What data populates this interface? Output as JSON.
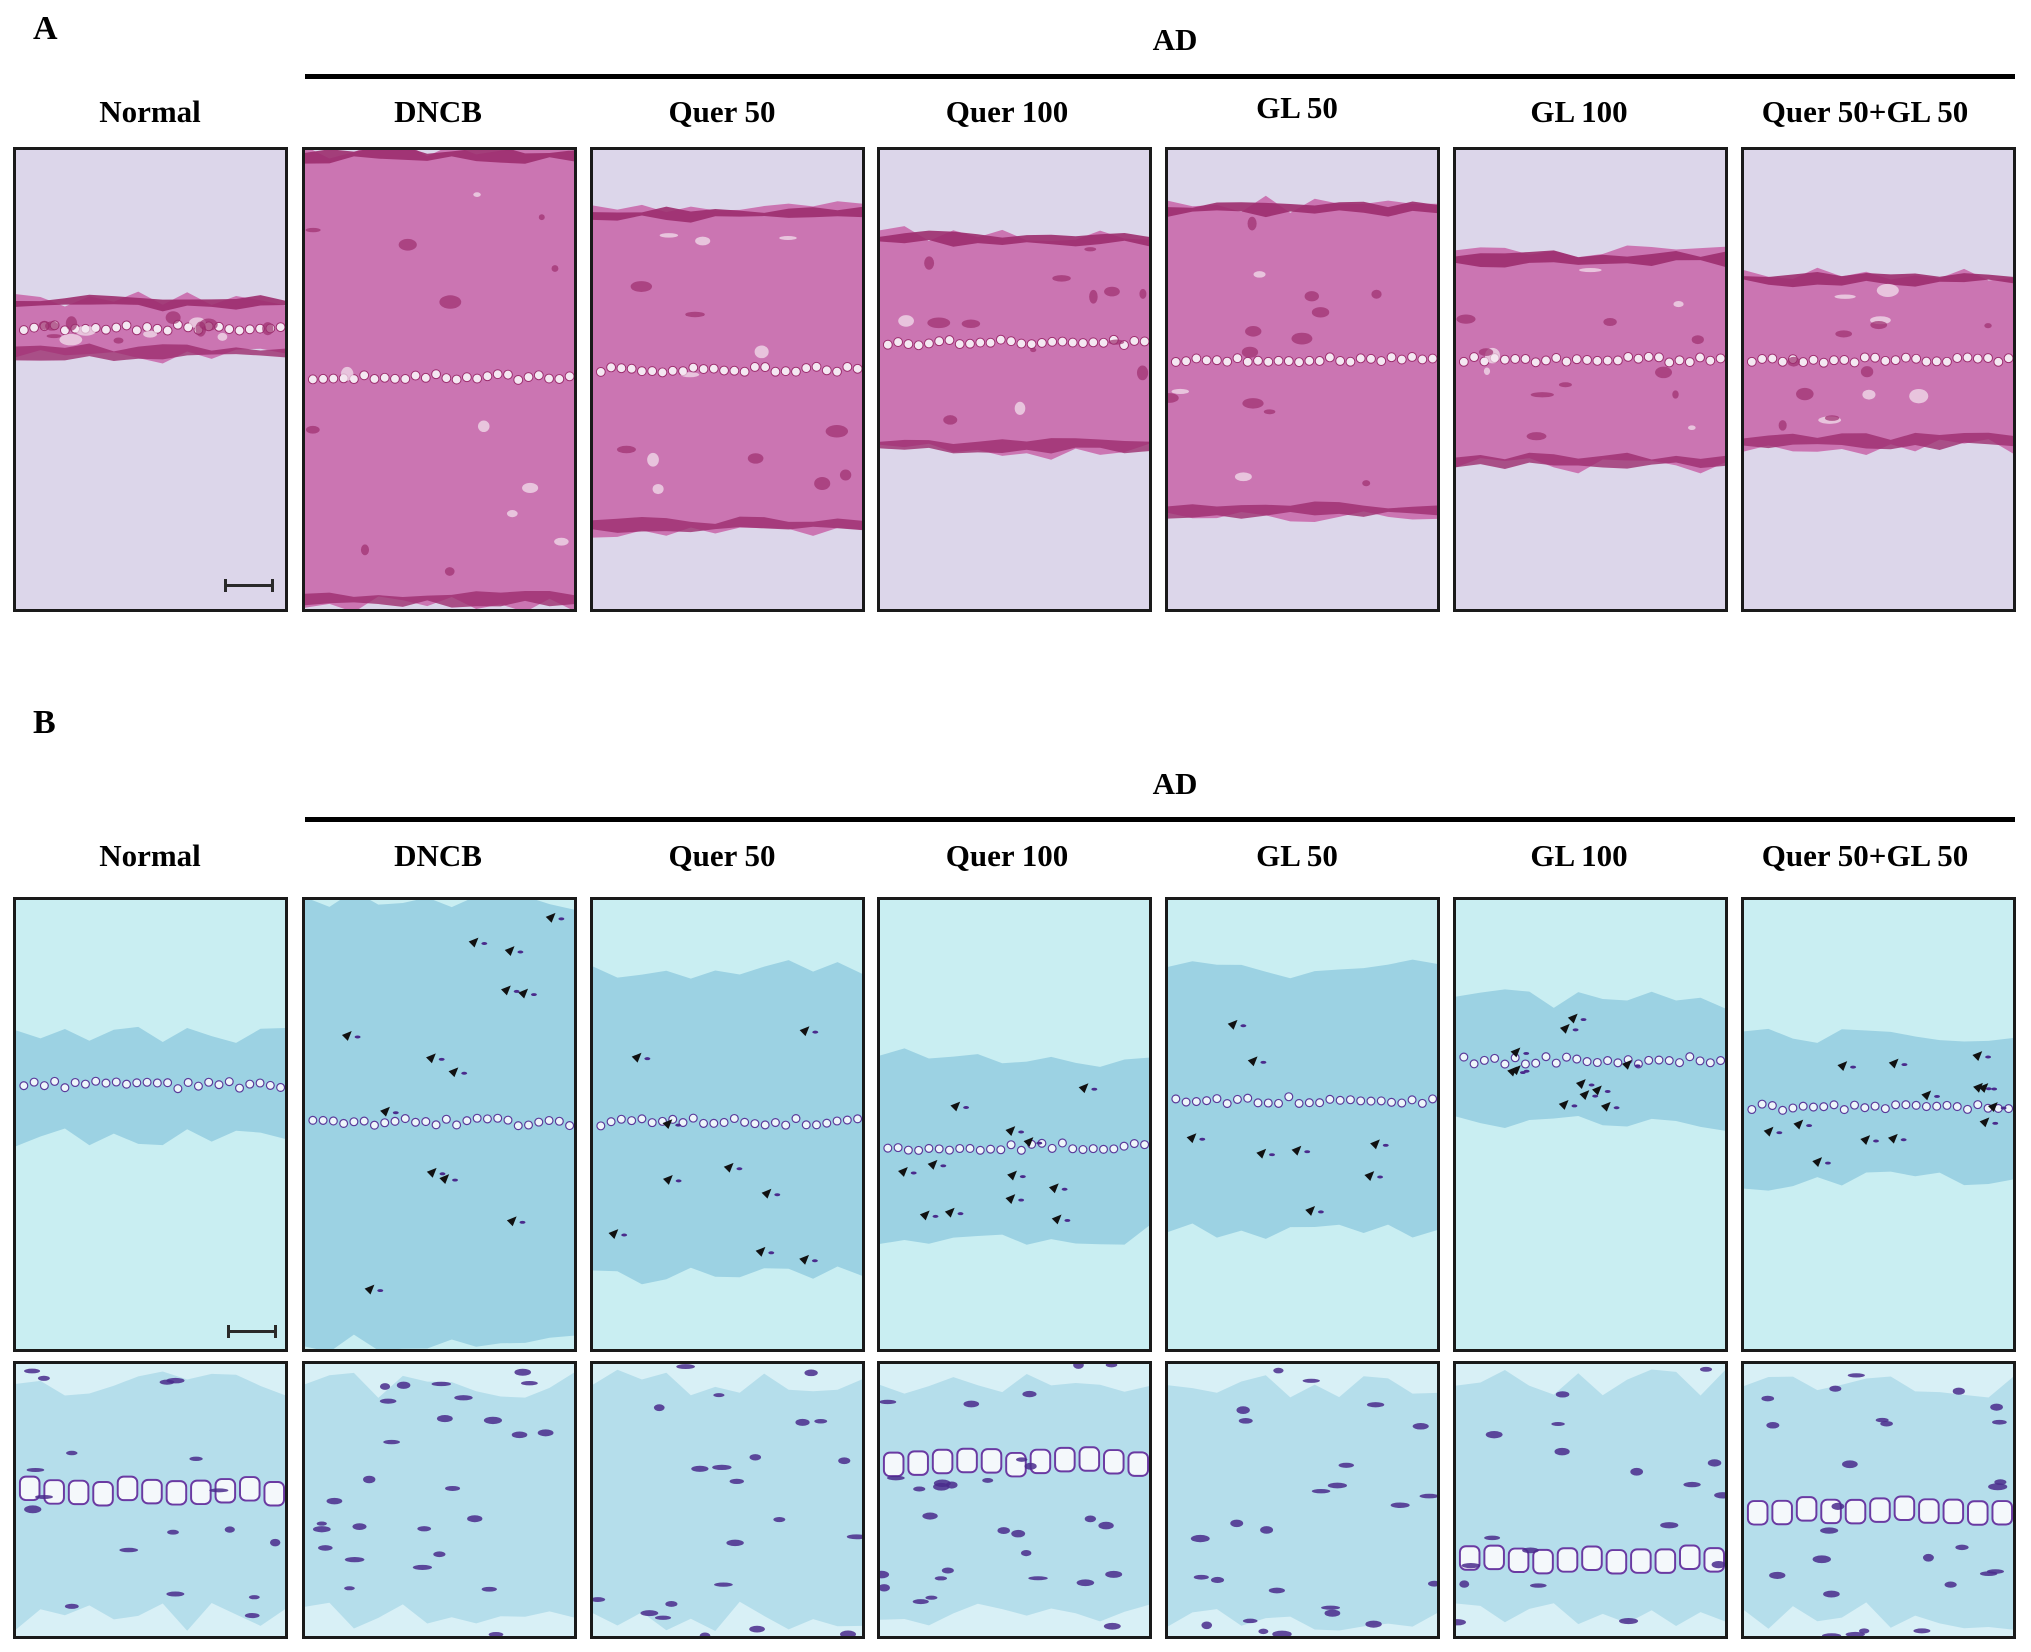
{
  "panel_a": {
    "letter": "A",
    "group_label": "AD",
    "columns": [
      "Normal",
      "DNCB",
      "Quer 50",
      "Quer 100",
      "GL 50",
      "GL 100",
      "Quer 50+GL 50"
    ],
    "stain_colors": {
      "background": "#dcd6ea",
      "tissue": "#c864a8",
      "dark": "#9c2d6e"
    }
  },
  "panel_b": {
    "letter": "B",
    "group_label": "AD",
    "columns": [
      "Normal",
      "DNCB",
      "Quer 50",
      "Quer 100",
      "GL 50",
      "GL 100",
      "Quer 50+GL 50"
    ],
    "stain_colors": {
      "background": "#c9eef2",
      "tissue": "#8cc8de",
      "mast_cell": "#4a2b8c"
    }
  }
}
